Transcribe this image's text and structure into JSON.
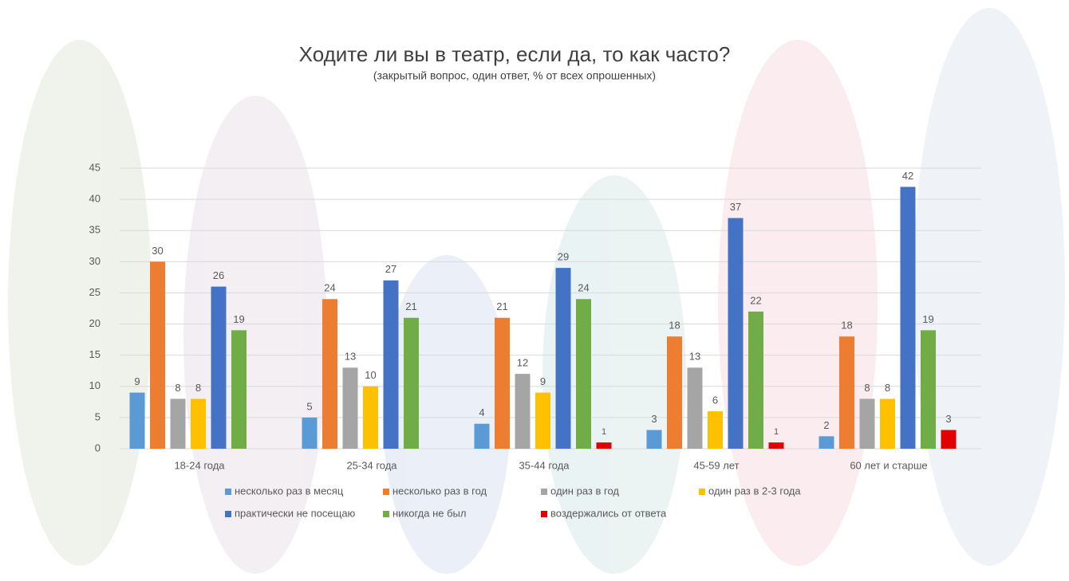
{
  "chart_data": {
    "type": "bar",
    "title": "Ходите ли вы в театр, если да, то как часто?",
    "subtitle": "(закрытый вопрос, один ответ, % от всех опрошенных)",
    "categories": [
      "18-24 года",
      "25-34 года",
      "35-44 года",
      "45-59 лет",
      "60 лет и старше"
    ],
    "series": [
      {
        "name": "несколько раз в месяц",
        "color": "#5b9bd5",
        "values": [
          9,
          5,
          4,
          3,
          2
        ]
      },
      {
        "name": "несколько раз в год",
        "color": "#ed7d31",
        "values": [
          30,
          24,
          21,
          18,
          18
        ]
      },
      {
        "name": "один раз в год",
        "color": "#a5a5a5",
        "values": [
          8,
          13,
          12,
          13,
          8
        ]
      },
      {
        "name": "один раз в 2-3 года",
        "color": "#ffc000",
        "values": [
          8,
          10,
          9,
          6,
          8
        ]
      },
      {
        "name": "практически не посещаю",
        "color": "#4472c4",
        "values": [
          26,
          27,
          29,
          37,
          42
        ]
      },
      {
        "name": "никогда не был",
        "color": "#70ad47",
        "values": [
          19,
          21,
          24,
          22,
          19
        ]
      },
      {
        "name": "воздержались от ответа",
        "color": "#e00000",
        "values": [
          null,
          null,
          1,
          1,
          3
        ]
      }
    ],
    "ylim": [
      0,
      45
    ],
    "yticks": [
      0,
      5,
      10,
      15,
      20,
      25,
      30,
      35,
      40,
      45
    ],
    "grid": true,
    "legend": "bottom"
  }
}
